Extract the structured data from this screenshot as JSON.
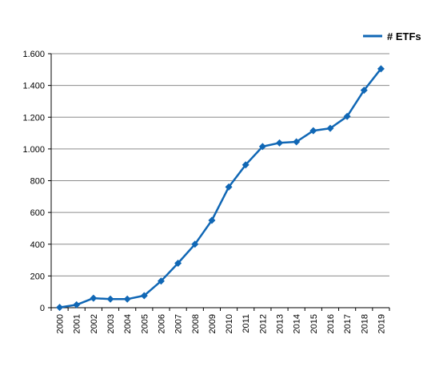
{
  "chart_data": {
    "type": "line",
    "title": "",
    "xlabel": "",
    "ylabel": "",
    "categories": [
      "2000",
      "2001",
      "2002",
      "2003",
      "2004",
      "2005",
      "2006",
      "2007",
      "2008",
      "2009",
      "2010",
      "2011",
      "2012",
      "2013",
      "2014",
      "2015",
      "2016",
      "2017",
      "2018",
      "2019"
    ],
    "series": [
      {
        "name": "# ETFs",
        "values": [
          2,
          18,
          60,
          54,
          54,
          76,
          168,
          280,
          400,
          550,
          760,
          900,
          1015,
          1038,
          1045,
          1115,
          1130,
          1205,
          1370,
          1505
        ]
      }
    ],
    "ylim": [
      0,
      1600
    ],
    "yticks": [
      0,
      200,
      400,
      600,
      800,
      1000,
      1200,
      1400,
      1600
    ],
    "ytick_labels": [
      "0",
      "200",
      "400",
      "600",
      "800",
      "1.000",
      "1.200",
      "1.400",
      "1.600"
    ],
    "grid": true,
    "legend": "top-right",
    "colors": {
      "line": "#1067b5",
      "grid": "#8c8c8c",
      "axis": "#000000"
    }
  }
}
